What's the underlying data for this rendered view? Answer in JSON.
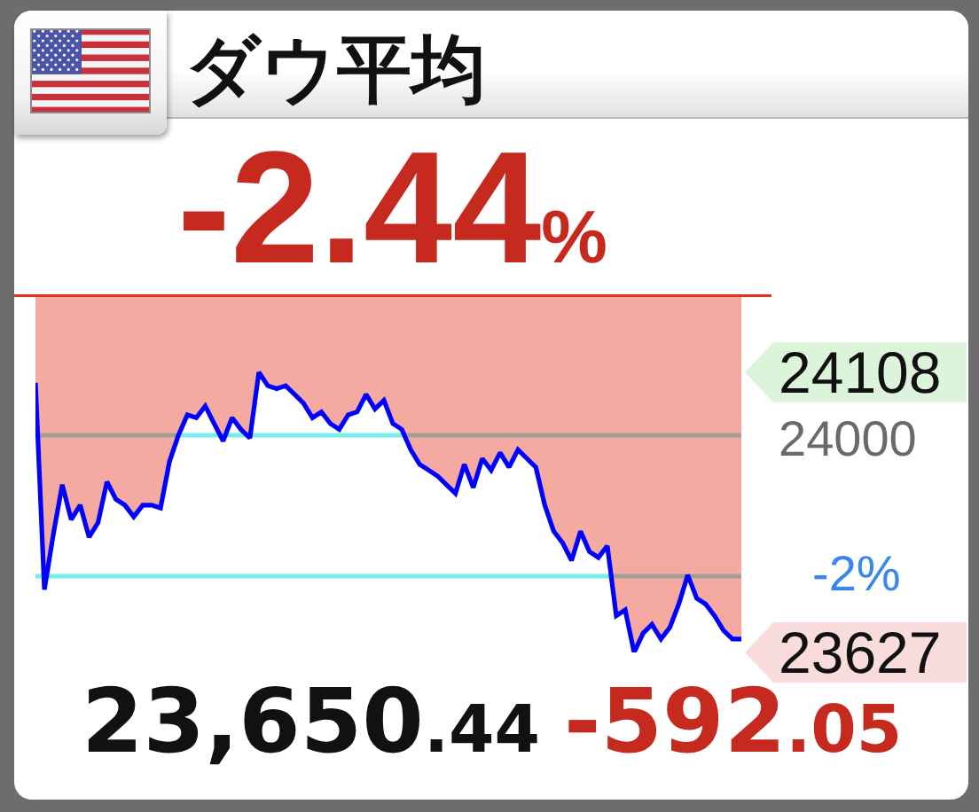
{
  "chart_data": {
    "type": "line",
    "title": "ダウ平均",
    "subtitle": "-2.44%",
    "annotations": [
      "-2%",
      "23,650.44",
      "-592.05"
    ],
    "categories": [
      null,
      null,
      null,
      null,
      null,
      null,
      null,
      null,
      null,
      null,
      null,
      null,
      null,
      null,
      null,
      null,
      null,
      null,
      null,
      null,
      null,
      null,
      null,
      null,
      null,
      null,
      null,
      null,
      null,
      null,
      null,
      null,
      null,
      null,
      null,
      null,
      null,
      null,
      null,
      null,
      null,
      null,
      null,
      null,
      null,
      null,
      null,
      null,
      null,
      null,
      null,
      null,
      null,
      null,
      null,
      null,
      null,
      null,
      null,
      null,
      null,
      null,
      null,
      null,
      null,
      null,
      null,
      null,
      null,
      null,
      null,
      null,
      null,
      null,
      null,
      null,
      null,
      null,
      null,
      null
    ],
    "series": [
      {
        "color": "#0000ff",
        "values": [
          24090,
          23735,
          23830,
          23915,
          23855,
          23880,
          23825,
          23850,
          23920,
          23890,
          23880,
          23860,
          23880,
          23880,
          23875,
          23955,
          24000,
          24035,
          24030,
          24050,
          24020,
          23990,
          24030,
          24010,
          23995,
          24108,
          24085,
          24080,
          24085,
          24070,
          24055,
          24030,
          24040,
          24020,
          24010,
          24035,
          24040,
          24070,
          24045,
          24060,
          24020,
          24010,
          23975,
          23950,
          23940,
          23930,
          23915,
          23900,
          23950,
          23910,
          23960,
          23940,
          23970,
          23945,
          23975,
          23960,
          23945,
          23880,
          23835,
          23815,
          23785,
          23835,
          23800,
          23790,
          23810,
          23690,
          23700,
          23627,
          23660,
          23675,
          23650,
          23670,
          23710,
          23760,
          23720,
          23710,
          23690,
          23665,
          23650,
          23650
        ],
        "lower": [
          24090,
          23735,
          23830,
          23915,
          23855,
          23880,
          23825,
          23850,
          23920,
          23890,
          23880,
          23860,
          23880,
          23880,
          23875,
          23955,
          24000,
          24035,
          24030,
          24050,
          24020,
          23990,
          24030,
          24010,
          23995,
          24108,
          24085,
          24080,
          24085,
          24070,
          24055,
          24030,
          24040,
          24020,
          24010,
          24035,
          24040,
          24070,
          24045,
          24060,
          24020,
          24010,
          23975,
          23950,
          23940,
          23930,
          23915,
          23900,
          23950,
          23910,
          23960,
          23940,
          23970,
          23945,
          23975,
          23960,
          23945,
          23880,
          23835,
          23815,
          23785,
          23835,
          23800,
          23790,
          23810,
          23690,
          23700,
          23627,
          23660,
          23675,
          23650,
          23670,
          23710,
          23760,
          23720,
          23710,
          23690,
          23665,
          23650,
          23650
        ],
        "upper": [
          24242,
          24242,
          24242,
          24242,
          24242,
          24242,
          24242,
          24242,
          24242,
          24242,
          24242,
          24242,
          24242,
          24242,
          24242,
          24242,
          24242,
          24242,
          24242,
          24242,
          24242,
          24242,
          24242,
          24242,
          24242,
          24242,
          24242,
          24242,
          24242,
          24242,
          24242,
          24242,
          24242,
          24242,
          24242,
          24242,
          24242,
          24242,
          24242,
          24242,
          24242,
          24242,
          24242,
          24242,
          24242,
          24242,
          24242,
          24242,
          24242,
          24242,
          24242,
          24242,
          24242,
          24242,
          24242,
          24242,
          24242,
          24242,
          24242,
          24242,
          24242,
          24242,
          24242,
          24242,
          24242,
          24242,
          24242,
          24242,
          24242,
          24242,
          24242,
          24242,
          24242,
          24242,
          24242,
          24242,
          24242,
          24242,
          24242,
          24242
        ]
      }
    ],
    "ylim": [
      23627,
      24242
    ],
    "yticks": [
      24108,
      24000,
      23627
    ],
    "tick_labels": "y",
    "ref_lines": [
      {
        "axis": "y",
        "value": 24242,
        "color": "#e5321f"
      },
      {
        "axis": "y",
        "value": 24000,
        "color": "#74eeee"
      },
      {
        "axis": "y",
        "value": 23758,
        "color": "#74eeee"
      }
    ]
  }
}
